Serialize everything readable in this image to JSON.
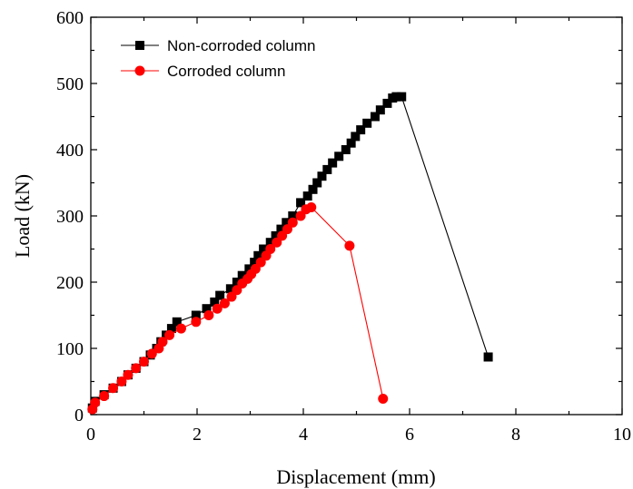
{
  "chart_data": {
    "type": "line",
    "xlabel": "Displacement (mm)",
    "ylabel": "Load (kN)",
    "xlim": [
      0,
      10
    ],
    "ylim": [
      0,
      600
    ],
    "xticks": [
      "0",
      "2",
      "4",
      "6",
      "8",
      "10"
    ],
    "yticks": [
      "0",
      "100",
      "200",
      "300",
      "400",
      "500",
      "600"
    ],
    "grid": false,
    "legend_position": "top-left",
    "series": [
      {
        "name": "Non-corroded column",
        "color": "#000000",
        "marker": "square",
        "points": [
          [
            0.03,
            10
          ],
          [
            0.08,
            20
          ],
          [
            0.25,
            30
          ],
          [
            0.42,
            40
          ],
          [
            0.58,
            50
          ],
          [
            0.7,
            60
          ],
          [
            0.85,
            70
          ],
          [
            1.0,
            80
          ],
          [
            1.12,
            90
          ],
          [
            1.24,
            100
          ],
          [
            1.32,
            110
          ],
          [
            1.42,
            120
          ],
          [
            1.52,
            130
          ],
          [
            1.62,
            140
          ],
          [
            1.98,
            150
          ],
          [
            2.18,
            160
          ],
          [
            2.33,
            170
          ],
          [
            2.43,
            180
          ],
          [
            2.63,
            190
          ],
          [
            2.75,
            200
          ],
          [
            2.85,
            210
          ],
          [
            2.98,
            220
          ],
          [
            3.08,
            230
          ],
          [
            3.15,
            240
          ],
          [
            3.25,
            250
          ],
          [
            3.38,
            260
          ],
          [
            3.48,
            270
          ],
          [
            3.58,
            280
          ],
          [
            3.68,
            290
          ],
          [
            3.8,
            300
          ],
          [
            3.95,
            320
          ],
          [
            4.08,
            330
          ],
          [
            4.18,
            340
          ],
          [
            4.26,
            350
          ],
          [
            4.35,
            360
          ],
          [
            4.45,
            370
          ],
          [
            4.55,
            380
          ],
          [
            4.67,
            390
          ],
          [
            4.8,
            400
          ],
          [
            4.9,
            410
          ],
          [
            4.98,
            420
          ],
          [
            5.08,
            430
          ],
          [
            5.2,
            440
          ],
          [
            5.35,
            450
          ],
          [
            5.45,
            460
          ],
          [
            5.58,
            470
          ],
          [
            5.68,
            478
          ],
          [
            5.75,
            480
          ],
          [
            5.85,
            480
          ],
          [
            7.48,
            87
          ]
        ]
      },
      {
        "name": "Corroded column",
        "color": "#ff0000",
        "marker": "circle",
        "points": [
          [
            0.03,
            8
          ],
          [
            0.08,
            18
          ],
          [
            0.25,
            28
          ],
          [
            0.42,
            40
          ],
          [
            0.58,
            50
          ],
          [
            0.7,
            60
          ],
          [
            0.85,
            70
          ],
          [
            1.0,
            80
          ],
          [
            1.15,
            92
          ],
          [
            1.28,
            100
          ],
          [
            1.35,
            110
          ],
          [
            1.48,
            120
          ],
          [
            1.7,
            130
          ],
          [
            1.98,
            140
          ],
          [
            2.22,
            150
          ],
          [
            2.38,
            160
          ],
          [
            2.52,
            168
          ],
          [
            2.65,
            178
          ],
          [
            2.75,
            188
          ],
          [
            2.85,
            198
          ],
          [
            2.95,
            205
          ],
          [
            3.02,
            212
          ],
          [
            3.1,
            220
          ],
          [
            3.2,
            230
          ],
          [
            3.3,
            240
          ],
          [
            3.38,
            250
          ],
          [
            3.5,
            260
          ],
          [
            3.6,
            270
          ],
          [
            3.7,
            280
          ],
          [
            3.8,
            290
          ],
          [
            3.95,
            300
          ],
          [
            4.05,
            310
          ],
          [
            4.15,
            313
          ],
          [
            4.87,
            255
          ],
          [
            5.5,
            24
          ]
        ]
      }
    ]
  }
}
